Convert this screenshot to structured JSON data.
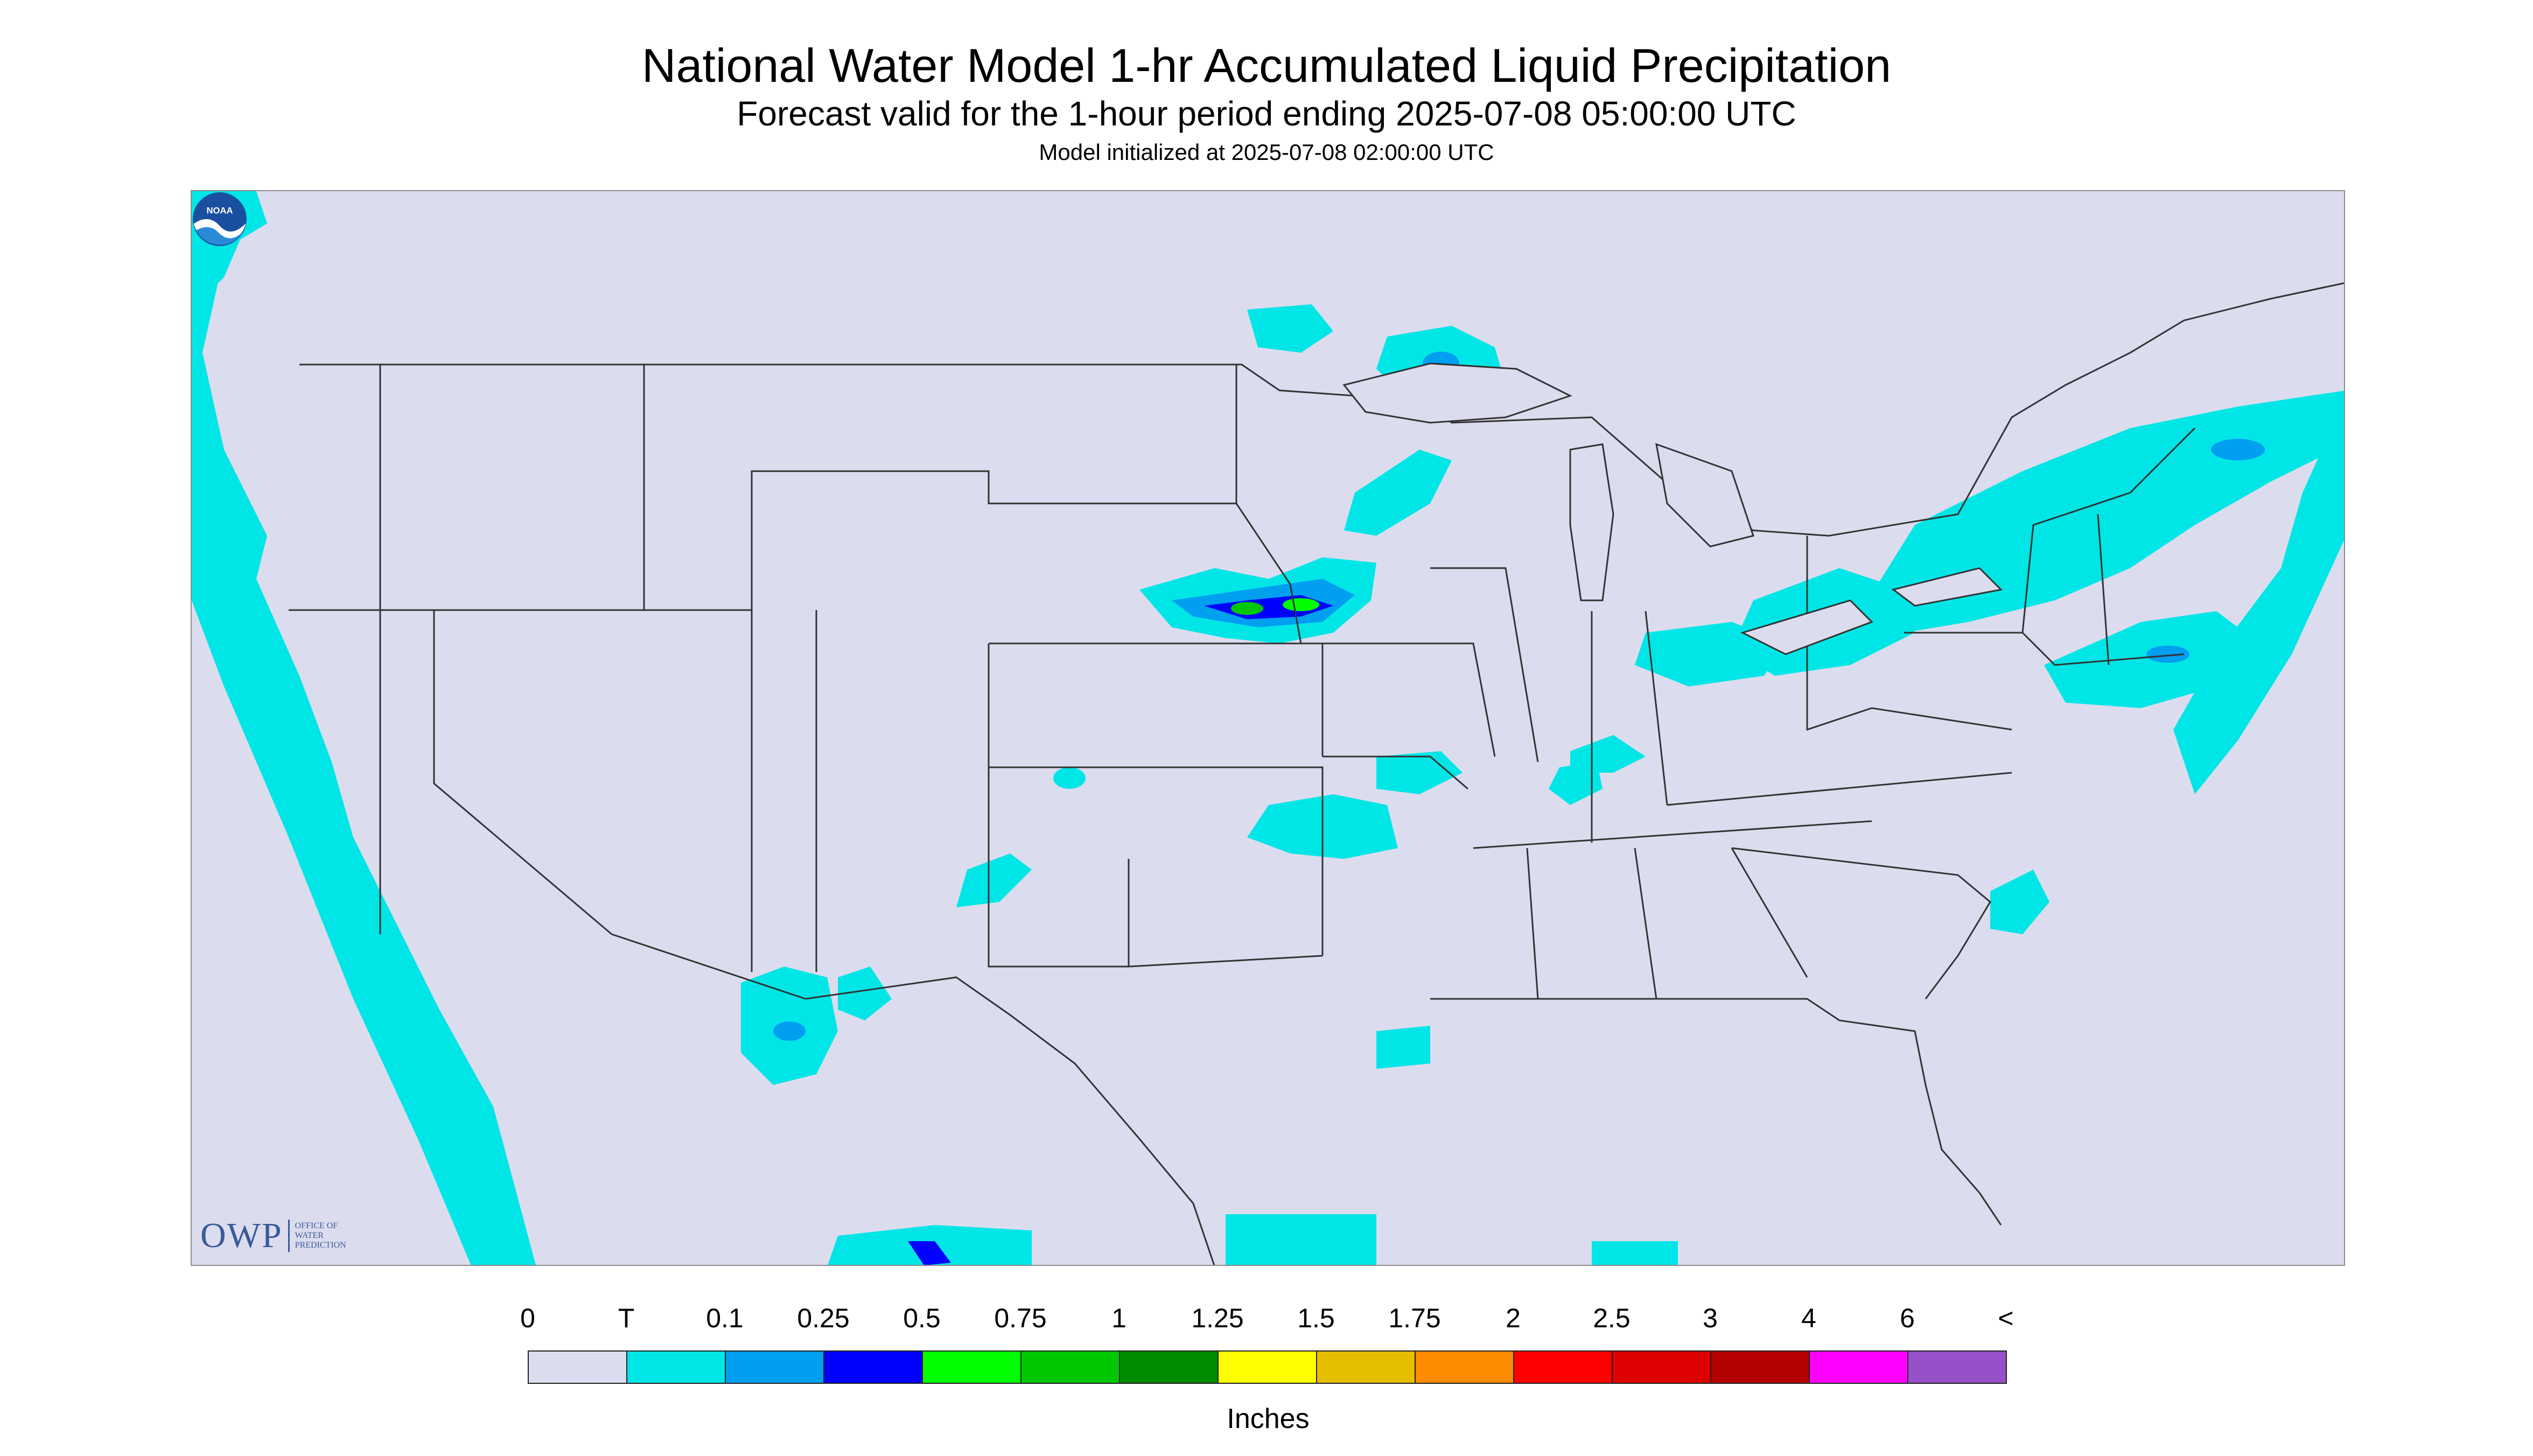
{
  "header": {
    "title": "National Water Model 1-hr Accumulated Liquid Precipitation",
    "subtitle": "Forecast valid for the 1-hour period ending 2025-07-08 05:00:00 UTC",
    "init": "Model initialized at 2025-07-08 02:00:00 UTC"
  },
  "logos": {
    "owp_main": "OWP",
    "owp_line1": "OFFICE OF",
    "owp_line2": "WATER",
    "owp_line3": "PREDICTION",
    "noaa_text": "NOAA"
  },
  "legend": {
    "labels": [
      "0",
      "T",
      "0.1",
      "0.25",
      "0.5",
      "0.75",
      "1",
      "1.25",
      "1.5",
      "1.75",
      "2",
      "2.5",
      "3",
      "4",
      "6",
      "<"
    ],
    "colors": [
      "#dcdcef",
      "#00e6e6",
      "#009ff0",
      "#0000ff",
      "#00ff00",
      "#00c800",
      "#008c00",
      "#ffff00",
      "#e6be00",
      "#ff8c00",
      "#ff0000",
      "#dc0000",
      "#b40000",
      "#ff00ff",
      "#9650c8"
    ],
    "units": "Inches"
  },
  "colors": {
    "background": "#dcdcef",
    "trace": "#00e6e6",
    "light": "#009ff0",
    "moderate": "#0000ff",
    "heavy": "#00c800",
    "border": "#333333"
  }
}
